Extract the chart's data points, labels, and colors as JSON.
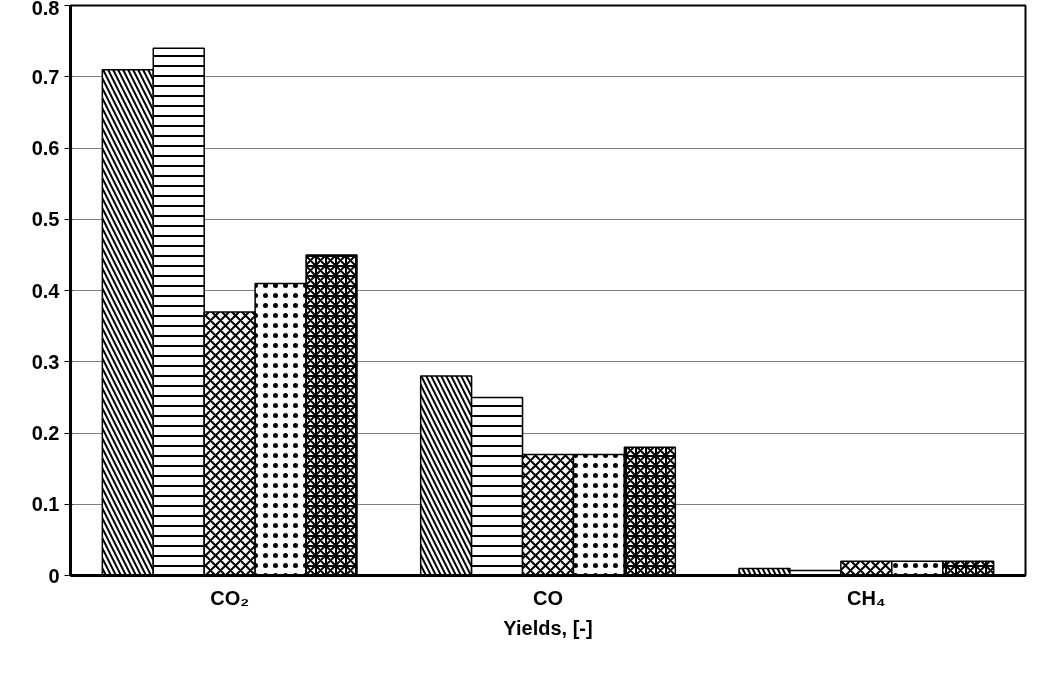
{
  "chart_data": {
    "type": "bar",
    "xlabel": "Yields, [-]",
    "categories": [
      "CO₂",
      "CO",
      "CH₄"
    ],
    "series": [
      {
        "color": "#000000",
        "values": [
          0.71,
          0.28,
          0.01
        ]
      },
      {
        "color": "#000000",
        "values": [
          0.74,
          0.25,
          0.007
        ]
      },
      {
        "color": "#000000",
        "values": [
          0.37,
          0.17,
          0.02
        ]
      },
      {
        "color": "#000000",
        "values": [
          0.41,
          0.17,
          0.02
        ]
      },
      {
        "color": "#000000",
        "values": [
          0.45,
          0.18,
          0.02
        ]
      }
    ],
    "ylim": [
      0,
      0.8
    ],
    "yticks": [
      0,
      0.1,
      0.2,
      0.3,
      0.4,
      0.5,
      0.6,
      0.7,
      0.8
    ],
    "grid": "y"
  }
}
